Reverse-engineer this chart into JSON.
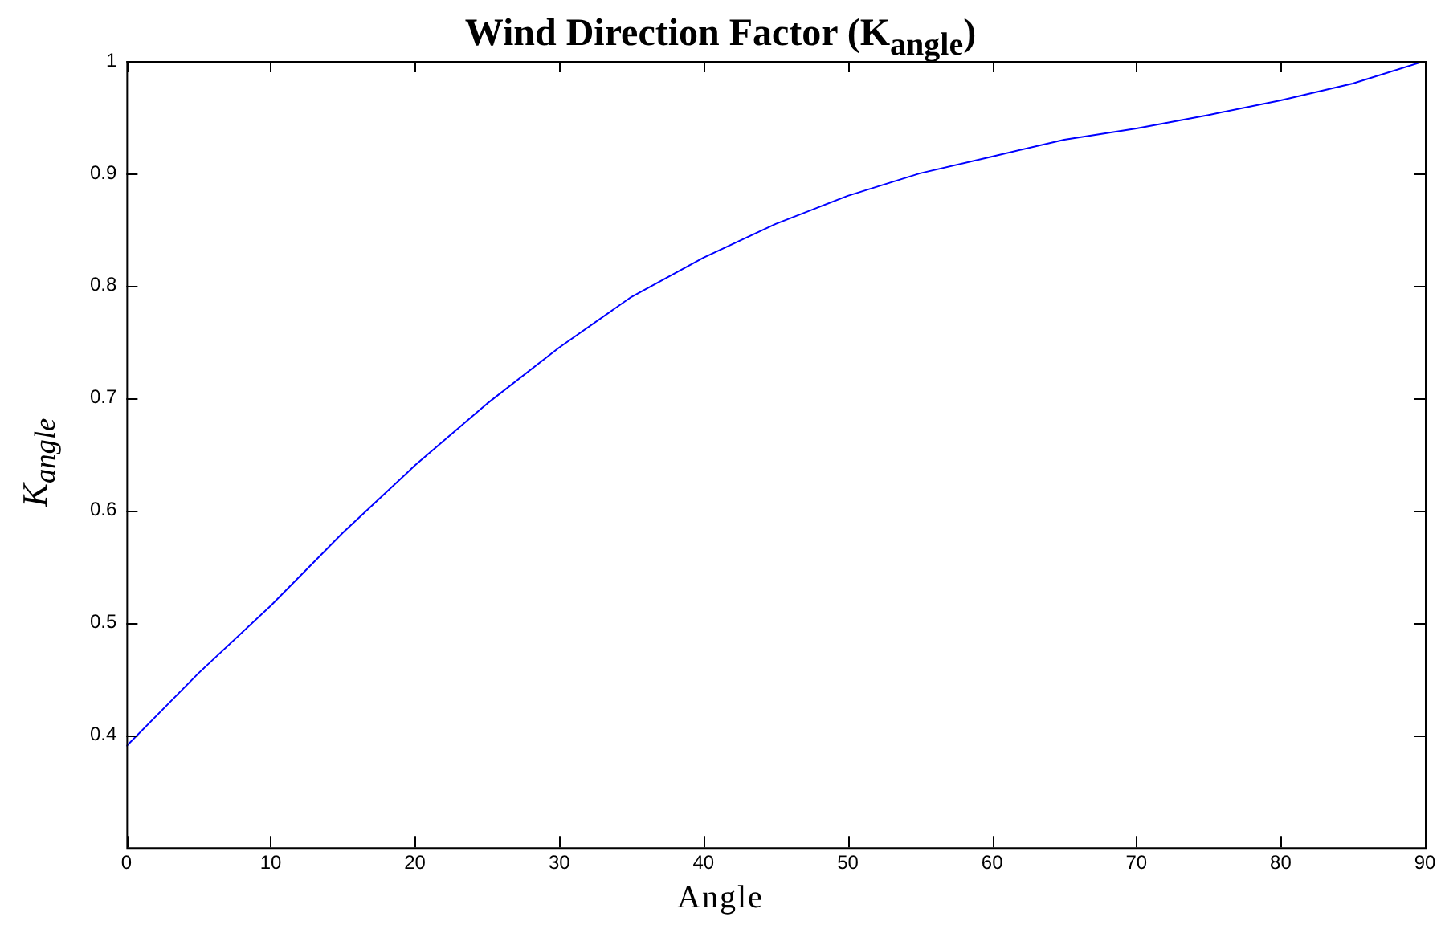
{
  "chart_data": {
    "type": "line",
    "title": "Wind Direction Factor (K$_{angle}$)",
    "xlabel": "Angle",
    "ylabel": "K$_{angle}$",
    "x": [
      0,
      5,
      10,
      15,
      20,
      25,
      30,
      35,
      40,
      45,
      50,
      55,
      60,
      65,
      70,
      75,
      80,
      85,
      90
    ],
    "series": [
      {
        "color": "#0000ff",
        "values": [
          0.39,
          0.455,
          0.515,
          0.58,
          0.64,
          0.695,
          0.745,
          0.79,
          0.825,
          0.855,
          0.88,
          0.9,
          0.915,
          0.93,
          0.94,
          0.952,
          0.965,
          0.98,
          1.0
        ]
      }
    ],
    "xlim": [
      0,
      90
    ],
    "xticks": [
      0,
      10,
      20,
      30,
      40,
      50,
      60,
      70,
      80,
      90
    ],
    "ylim": [
      0.3,
      1
    ],
    "yticks": [
      0.4,
      0.5,
      0.6,
      0.7,
      0.8,
      0.9,
      1
    ],
    "grid": false,
    "legend": false,
    "marker": "none",
    "line_style": "solid"
  }
}
